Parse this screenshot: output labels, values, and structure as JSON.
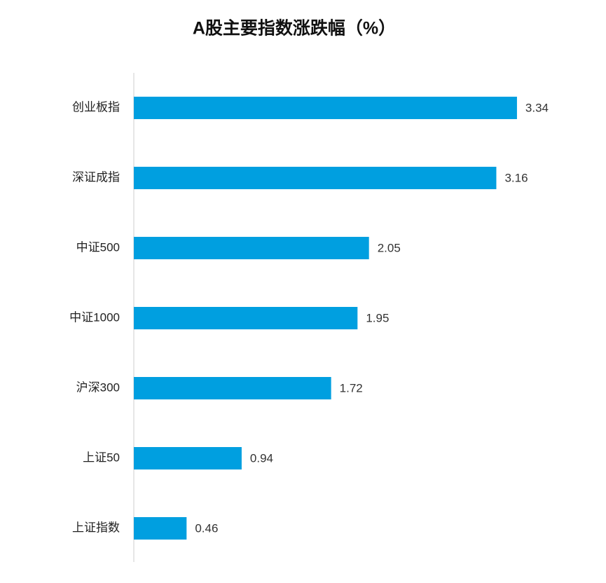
{
  "chart_data": {
    "type": "hbar",
    "title": "A股主要指数涨跌幅（%）",
    "categories": [
      "创业板指",
      "深证成指",
      "中证500",
      "中证1000",
      "沪深300",
      "上证50",
      "上证指数"
    ],
    "values": [
      3.34,
      3.16,
      2.05,
      1.95,
      1.72,
      0.94,
      0.46
    ],
    "color": "#009fe0",
    "xlim": [
      0,
      4
    ],
    "grid": false
  }
}
